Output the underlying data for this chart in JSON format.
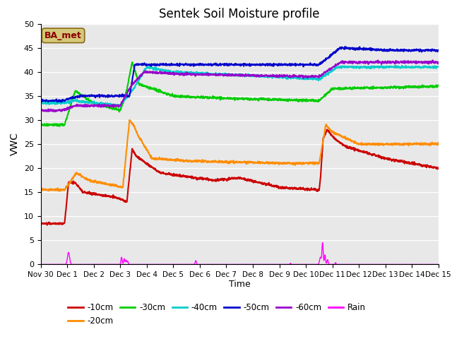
{
  "title": "Sentek Soil Moisture profile",
  "xlabel": "Time",
  "ylabel": "VWC",
  "annotation_text": "BA_met",
  "annotation_color": "#8B0000",
  "annotation_bg": "#d4c87a",
  "xlim": [
    0,
    15.0
  ],
  "ylim": [
    0,
    50
  ],
  "yticks": [
    0,
    5,
    10,
    15,
    20,
    25,
    30,
    35,
    40,
    45,
    50
  ],
  "xtick_labels": [
    "Nov 30",
    "Dec 1",
    "Dec 2",
    "Dec 3",
    "Dec 4",
    "Dec 5",
    "Dec 6",
    "Dec 7",
    "Dec 8",
    "Dec 9",
    "Dec 10",
    "Dec 11",
    "Dec 12",
    "Dec 13",
    "Dec 14",
    "Dec 15"
  ],
  "xtick_positions": [
    0,
    1,
    2,
    3,
    4,
    5,
    6,
    7,
    8,
    9,
    10,
    11,
    12,
    13,
    14,
    15
  ],
  "bg_color": "#e8e8e8",
  "line_colors": {
    "d10": "#cc0000",
    "d20": "#ff8c00",
    "d30": "#00cc00",
    "d40": "#00cccc",
    "d50": "#0000cc",
    "d60": "#9900cc",
    "rain": "#ff00ff"
  },
  "line_widths": {
    "d10": 1.5,
    "d20": 1.5,
    "d30": 1.5,
    "d40": 1.5,
    "d50": 1.5,
    "d60": 1.5,
    "rain": 1.0
  },
  "figsize": [
    6.4,
    4.8
  ],
  "dpi": 100
}
